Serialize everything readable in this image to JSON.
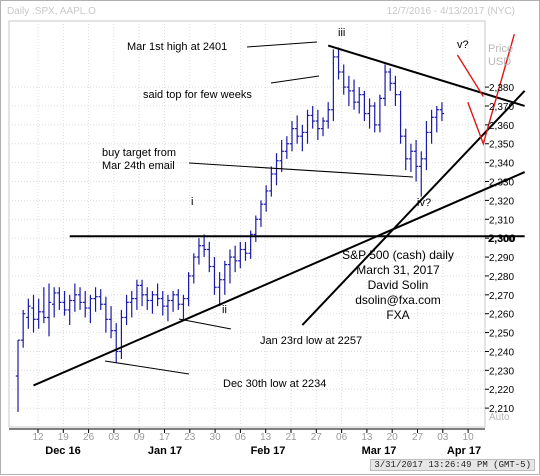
{
  "header": {
    "left": "Daily .SPX, AAPL.O",
    "right": "12/7/2016 - 4/13/2017 (NYC)"
  },
  "timestamp": "3/31/2017 13:26:49 PM (GMT-5)",
  "colors": {
    "bars": "#1a1aa8",
    "trend": "#000000",
    "red": "#e01818",
    "axis": "#000000",
    "grid": "#dcdcdc"
  },
  "chart_data": {
    "type": "ohlc",
    "title": "S&P 500 (cash) daily",
    "ylabel": "Price USD",
    "ylim": [
      2200,
      2415
    ],
    "yticks": [
      2210,
      2220,
      2230,
      2240,
      2250,
      2260,
      2270,
      2280,
      2290,
      2300,
      2310,
      2320,
      2330,
      2340,
      2350,
      2360,
      2370,
      2380
    ],
    "ytick_labels": [
      "2,210",
      "2,220",
      "2,230",
      "2,240",
      "2,250",
      "2,260",
      "2,270",
      "2,280",
      "2,290",
      "2,300",
      "2,310",
      "2,320",
      "2,330",
      "2,340",
      "2,350",
      "2,360",
      "2,370",
      "2,380"
    ],
    "highlight_tick": {
      "value": 2300,
      "label": "2,300"
    },
    "x_tick_labels": [
      "12",
      "19",
      "26",
      "03",
      "09",
      "17",
      "23",
      "30",
      "06",
      "13",
      "21",
      "27",
      "06",
      "13",
      "20",
      "27",
      "03",
      "10"
    ],
    "month_labels": [
      "Dec 16",
      "Jan 17",
      "Feb 17",
      "Mar 17",
      "Apr 17"
    ],
    "bars": [
      [
        2227,
        2208,
        2246,
        2246
      ],
      [
        2246,
        2242,
        2262,
        2260
      ],
      [
        2258,
        2252,
        2268,
        2264
      ],
      [
        2263,
        2250,
        2270,
        2257
      ],
      [
        2257,
        2252,
        2268,
        2261
      ],
      [
        2261,
        2255,
        2274,
        2258
      ],
      [
        2258,
        2248,
        2276,
        2266
      ],
      [
        2265,
        2258,
        2274,
        2271
      ],
      [
        2271,
        2262,
        2274,
        2266
      ],
      [
        2266,
        2259,
        2272,
        2262
      ],
      [
        2262,
        2254,
        2270,
        2267
      ],
      [
        2267,
        2261,
        2276,
        2270
      ],
      [
        2270,
        2262,
        2274,
        2266
      ],
      [
        2266,
        2258,
        2272,
        2263
      ],
      [
        2263,
        2255,
        2270,
        2268
      ],
      [
        2268,
        2261,
        2274,
        2269
      ],
      [
        2269,
        2262,
        2273,
        2265
      ],
      [
        2265,
        2250,
        2269,
        2257
      ],
      [
        2257,
        2247,
        2264,
        2251
      ],
      [
        2251,
        2234,
        2255,
        2240
      ],
      [
        2240,
        2236,
        2262,
        2258
      ],
      [
        2258,
        2254,
        2270,
        2266
      ],
      [
        2266,
        2258,
        2272,
        2268
      ],
      [
        2268,
        2262,
        2278,
        2275
      ],
      [
        2275,
        2264,
        2278,
        2270
      ],
      [
        2270,
        2262,
        2274,
        2267
      ],
      [
        2267,
        2260,
        2272,
        2270
      ],
      [
        2270,
        2264,
        2276,
        2268
      ],
      [
        2268,
        2259,
        2272,
        2264
      ],
      [
        2264,
        2256,
        2270,
        2267
      ],
      [
        2267,
        2261,
        2272,
        2270
      ],
      [
        2270,
        2262,
        2273,
        2265
      ],
      [
        2265,
        2257,
        2270,
        2268
      ],
      [
        2268,
        2264,
        2282,
        2280
      ],
      [
        2280,
        2276,
        2292,
        2290
      ],
      [
        2290,
        2286,
        2300,
        2296
      ],
      [
        2296,
        2290,
        2302,
        2294
      ],
      [
        2294,
        2282,
        2298,
        2285
      ],
      [
        2285,
        2270,
        2290,
        2274
      ],
      [
        2274,
        2264,
        2282,
        2278
      ],
      [
        2278,
        2270,
        2288,
        2286
      ],
      [
        2286,
        2276,
        2294,
        2290
      ],
      [
        2290,
        2282,
        2296,
        2288
      ],
      [
        2288,
        2284,
        2298,
        2294
      ],
      [
        2294,
        2288,
        2298,
        2292
      ],
      [
        2292,
        2289,
        2304,
        2302
      ],
      [
        2302,
        2298,
        2312,
        2310
      ],
      [
        2310,
        2306,
        2320,
        2318
      ],
      [
        2318,
        2314,
        2328,
        2325
      ],
      [
        2325,
        2322,
        2338,
        2334
      ],
      [
        2334,
        2328,
        2345,
        2341
      ],
      [
        2341,
        2335,
        2352,
        2346
      ],
      [
        2346,
        2342,
        2354,
        2350
      ],
      [
        2350,
        2346,
        2362,
        2358
      ],
      [
        2358,
        2350,
        2365,
        2354
      ],
      [
        2354,
        2346,
        2360,
        2356
      ],
      [
        2356,
        2350,
        2368,
        2365
      ],
      [
        2365,
        2358,
        2370,
        2362
      ],
      [
        2362,
        2352,
        2368,
        2358
      ],
      [
        2358,
        2354,
        2364,
        2362
      ],
      [
        2362,
        2358,
        2372,
        2368
      ],
      [
        2368,
        2362,
        2400,
        2396
      ],
      [
        2396,
        2384,
        2401,
        2388
      ],
      [
        2388,
        2376,
        2392,
        2380
      ],
      [
        2380,
        2370,
        2386,
        2378
      ],
      [
        2378,
        2368,
        2384,
        2372
      ],
      [
        2372,
        2366,
        2380,
        2376
      ],
      [
        2376,
        2362,
        2378,
        2366
      ],
      [
        2366,
        2358,
        2374,
        2370
      ],
      [
        2370,
        2356,
        2372,
        2360
      ],
      [
        2360,
        2356,
        2376,
        2374
      ],
      [
        2374,
        2370,
        2392,
        2388
      ],
      [
        2388,
        2378,
        2390,
        2382
      ],
      [
        2382,
        2370,
        2386,
        2376
      ],
      [
        2376,
        2350,
        2378,
        2354
      ],
      [
        2354,
        2336,
        2358,
        2342
      ],
      [
        2342,
        2335,
        2350,
        2346
      ],
      [
        2346,
        2330,
        2352,
        2338
      ],
      [
        2338,
        2322,
        2346,
        2342
      ],
      [
        2342,
        2336,
        2362,
        2356
      ],
      [
        2356,
        2350,
        2368,
        2364
      ],
      [
        2364,
        2356,
        2370,
        2368
      ],
      [
        2368,
        2362,
        2372,
        2366
      ]
    ],
    "trendlines": [
      {
        "from": [
          3,
          2222
        ],
        "to": [
          98,
          2335
        ]
      },
      {
        "from": [
          55,
          2254
        ],
        "to": [
          98,
          2378
        ]
      },
      {
        "from": [
          60,
          2402
        ],
        "to": [
          98,
          2370
        ]
      },
      {
        "from": [
          10,
          2301
        ],
        "to": [
          98,
          2301
        ]
      }
    ],
    "projection": [
      [
        87,
        2372
      ],
      [
        90,
        2350
      ],
      [
        96,
        2408
      ]
    ],
    "projection2": [
      [
        85,
        2397
      ],
      [
        90,
        2375
      ]
    ],
    "annotations": {
      "mar1": "Mar 1st high at 2401",
      "top": "said top for few weeks",
      "buy1": "buy target from",
      "buy2": "Mar 24th email",
      "jan23": "Jan 23rd low at 2257",
      "dec30": "Dec 30th low at 2234",
      "i": "i",
      "ii": "ii",
      "iii": "iii",
      "iv": "iv?",
      "v": "v?"
    },
    "info": [
      "S&P 500 (cash) daily",
      "March 31, 2017",
      "David Solin",
      "dsolin@fxa.com",
      "FXA"
    ],
    "auto_label": "Auto"
  }
}
